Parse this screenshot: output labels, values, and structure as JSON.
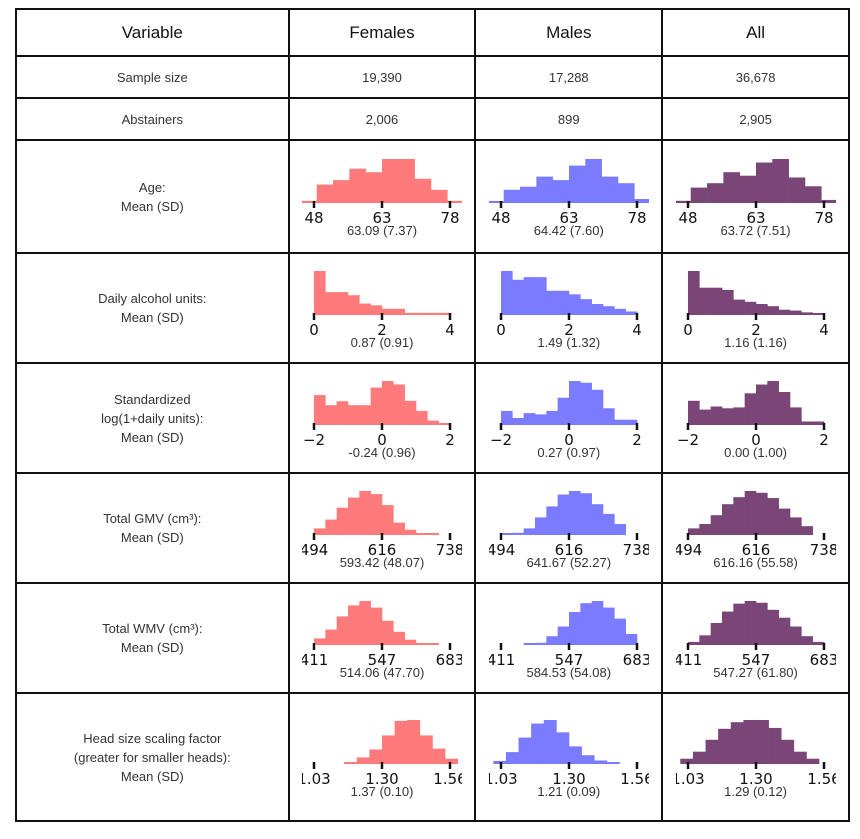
{
  "headers": [
    "Variable",
    "Females",
    "Males",
    "All"
  ],
  "colors": {
    "Females": "#ff7b7b",
    "Males": "#7b7bff",
    "All": "#7a4678"
  },
  "rows_simple": [
    {
      "label": "Sample size",
      "values": [
        "19,390",
        "17,288",
        "36,678"
      ]
    },
    {
      "label": "Abstainers",
      "values": [
        "2,006",
        "899",
        "2,905"
      ]
    }
  ],
  "chart_data": [
    {
      "type": "bar",
      "label_lines": [
        "Age:",
        "Mean (SD)"
      ],
      "ticks": [
        "48",
        "63",
        "78"
      ],
      "axis": [
        48,
        78
      ],
      "bins_range": [
        45,
        81
      ],
      "stats": [
        "63.09 (7.37)",
        "64.42 (7.60)",
        "63.72 (7.51)"
      ],
      "series": [
        [
          0.05,
          0.42,
          0.52,
          0.78,
          0.7,
          1,
          1,
          0.55,
          0.3,
          0.05
        ],
        [
          0.04,
          0.3,
          0.37,
          0.6,
          0.52,
          0.85,
          1,
          0.6,
          0.45,
          0.09
        ],
        [
          0.05,
          0.35,
          0.45,
          0.7,
          0.62,
          0.92,
          1,
          0.58,
          0.38,
          0.07
        ]
      ]
    },
    {
      "type": "bar",
      "label_lines": [
        "Daily alcohol units:",
        "Mean (SD)"
      ],
      "ticks": [
        "0",
        "2",
        "4"
      ],
      "axis": [
        0,
        4
      ],
      "bins_range": [
        0,
        4
      ],
      "stats": [
        "0.87 (0.91)",
        "1.49 (1.32)",
        "1.16 (1.16)"
      ],
      "series": [
        [
          1,
          0.52,
          0.52,
          0.45,
          0.26,
          0.22,
          0.14,
          0.14,
          0.05,
          0.05,
          0.05,
          0.05
        ],
        [
          1,
          0.8,
          0.86,
          0.86,
          0.55,
          0.55,
          0.47,
          0.36,
          0.25,
          0.2,
          0.14,
          0.08
        ],
        [
          1,
          0.62,
          0.62,
          0.57,
          0.35,
          0.3,
          0.25,
          0.2,
          0.12,
          0.1,
          0.06,
          0.04
        ]
      ]
    },
    {
      "type": "bar",
      "label_lines": [
        "Standardized",
        "log(1+daily units):",
        "Mean (SD)"
      ],
      "ticks": [
        "−2",
        "0",
        "2"
      ],
      "axis": [
        -2,
        2
      ],
      "bins_range": [
        -2,
        2
      ],
      "stats": [
        "-0.24 (0.96)",
        "0.27 (0.97)",
        "0.00 (1.00)"
      ],
      "series": [
        [
          0.68,
          0.45,
          0.54,
          0.45,
          0.45,
          0.85,
          1,
          0.92,
          0.55,
          0.32,
          0.1,
          0.02
        ],
        [
          0.32,
          0.16,
          0.27,
          0.24,
          0.32,
          0.62,
          1,
          0.96,
          0.8,
          0.38,
          0.12,
          0.12
        ],
        [
          0.55,
          0.35,
          0.42,
          0.38,
          0.4,
          0.72,
          0.92,
          1,
          0.75,
          0.4,
          0.08,
          0.08
        ]
      ]
    },
    {
      "type": "bar",
      "label_lines": [
        "Total GMV (cm³):",
        "Mean (SD)"
      ],
      "ticks": [
        "494",
        "616",
        "738"
      ],
      "axis": [
        494,
        738
      ],
      "bins_range": [
        494,
        738
      ],
      "stats": [
        "593.42 (48.07)",
        "641.67 (52.27)",
        "616.16 (55.58)"
      ],
      "series": [
        [
          0.15,
          0.35,
          0.62,
          0.85,
          1,
          0.93,
          0.68,
          0.28,
          0.12,
          0.04,
          0.02,
          0
        ],
        [
          0.02,
          0.05,
          0.15,
          0.4,
          0.65,
          0.92,
          1,
          0.95,
          0.7,
          0.48,
          0.25,
          0
        ],
        [
          0.15,
          0.25,
          0.45,
          0.7,
          0.86,
          1,
          0.96,
          0.84,
          0.6,
          0.4,
          0.2,
          0
        ]
      ]
    },
    {
      "type": "bar",
      "label_lines": [
        "Total WMV (cm³):",
        "Mean (SD)"
      ],
      "ticks": [
        "411",
        "547",
        "683"
      ],
      "axis": [
        411,
        683
      ],
      "bins_range": [
        411,
        683
      ],
      "stats": [
        "514.06 (47.70)",
        "584.53 (54.08)",
        "547.27 (61.80)"
      ],
      "series": [
        [
          0.15,
          0.35,
          0.65,
          0.9,
          1,
          0.85,
          0.55,
          0.3,
          0.12,
          0.04,
          0.02,
          0
        ],
        [
          0,
          0,
          0.02,
          0.05,
          0.2,
          0.42,
          0.75,
          0.95,
          1,
          0.85,
          0.6,
          0.25
        ],
        [
          0.07,
          0.22,
          0.5,
          0.76,
          0.94,
          1,
          0.96,
          0.8,
          0.62,
          0.42,
          0.2,
          0.07
        ]
      ]
    },
    {
      "type": "bar",
      "label_lines": [
        "Head size scaling factor",
        "(greater for smaller heads):",
        "Mean (SD)"
      ],
      "ticks": [
        "1.03",
        "1.30",
        "1.56"
      ],
      "axis": [
        1.03,
        1.56
      ],
      "bins_range": [
        1.0,
        1.59
      ],
      "stats": [
        "1.37 (0.10)",
        "1.21 (0.09)",
        "1.29 (0.12)"
      ],
      "series": [
        [
          0,
          0,
          0,
          0.03,
          0.15,
          0.33,
          0.65,
          0.98,
          1,
          0.65,
          0.35,
          0.12
        ],
        [
          0.07,
          0.27,
          0.6,
          0.92,
          1,
          0.72,
          0.4,
          0.2,
          0.08,
          0.02,
          0,
          0
        ],
        [
          0.12,
          0.28,
          0.55,
          0.8,
          0.95,
          1,
          1,
          0.82,
          0.55,
          0.28,
          0.12,
          0
        ]
      ]
    }
  ]
}
